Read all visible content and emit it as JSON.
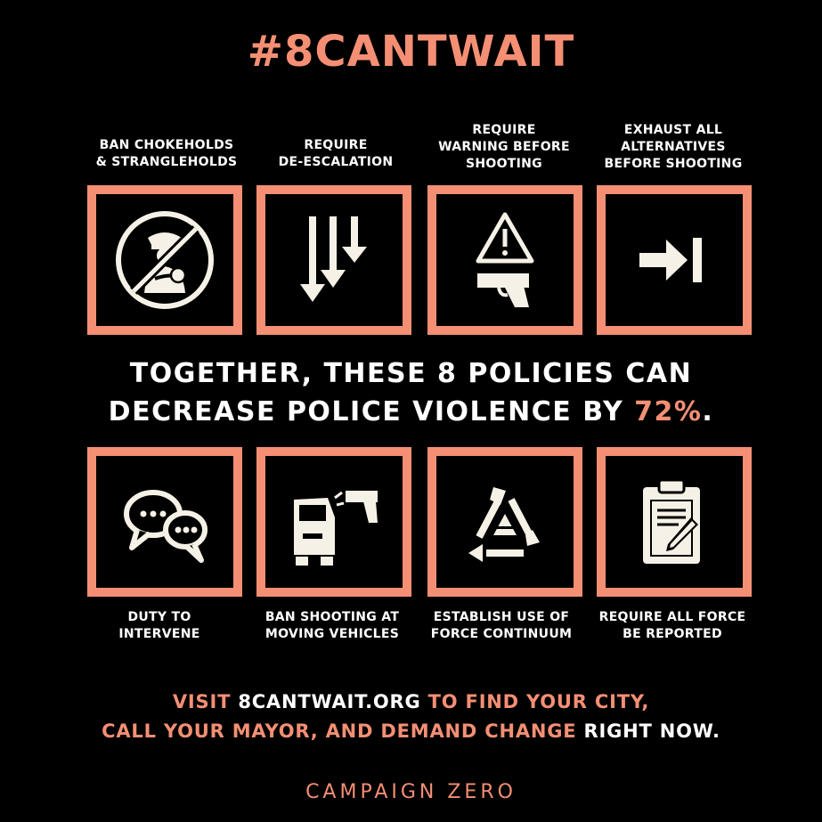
{
  "title": "#8CANTWAIT",
  "colors": {
    "accent": "#f48f74",
    "background": "#000000",
    "text": "#ffffff",
    "icon": "#f6f1e6"
  },
  "policies_top": [
    {
      "label_lines": [
        "BAN CHOKEHOLDS",
        "& STRANGLEHOLDS"
      ],
      "icon": "no-chokehold-icon"
    },
    {
      "label_lines": [
        "REQUIRE",
        "DE-ESCALATION"
      ],
      "icon": "de-escalation-arrows-icon"
    },
    {
      "label_lines": [
        "REQUIRE",
        "WARNING BEFORE",
        "SHOOTING"
      ],
      "icon": "warning-gun-icon"
    },
    {
      "label_lines": [
        "EXHAUST ALL",
        "ALTERNATIVES",
        "BEFORE SHOOTING"
      ],
      "icon": "arrow-to-bar-icon"
    }
  ],
  "policies_bottom": [
    {
      "label_lines": [
        "DUTY TO",
        "INTERVENE"
      ],
      "icon": "speech-bubbles-icon"
    },
    {
      "label_lines": [
        "BAN SHOOTING AT",
        "MOVING VEHICLES"
      ],
      "icon": "vehicle-gun-icon"
    },
    {
      "label_lines": [
        "ESTABLISH USE OF",
        "FORCE CONTINUUM"
      ],
      "icon": "continuum-cycle-icon"
    },
    {
      "label_lines": [
        "REQUIRE ALL FORCE",
        "BE REPORTED"
      ],
      "icon": "clipboard-report-icon"
    }
  ],
  "stat": {
    "line1": "TOGETHER, THESE 8 POLICIES CAN",
    "line2_prefix": "DECREASE POLICE VIOLENCE BY ",
    "highlight": "72%",
    "line2_suffix": "."
  },
  "cta": {
    "line1_prefix": "VISIT ",
    "line1_site": "8CANTWAIT.ORG",
    "line1_suffix": " TO FIND YOUR CITY,",
    "line2_main": "CALL YOUR MAYOR, AND DEMAND CHANGE",
    "line2_end": " RIGHT NOW."
  },
  "footer": "CAMPAIGN ZERO"
}
